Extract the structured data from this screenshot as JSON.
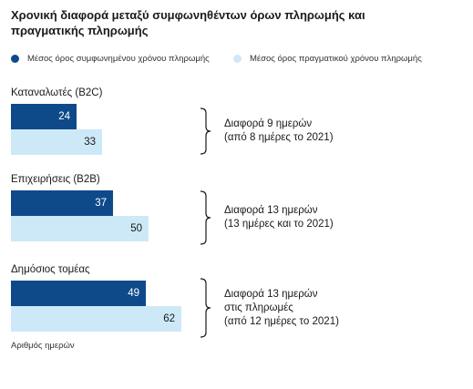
{
  "colors": {
    "dark": "#0e4a8a",
    "light": "#cde9f7",
    "text": "#1a1a1a"
  },
  "chart_data": {
    "type": "bar",
    "orientation": "horizontal",
    "title": "Χρονική διαφορά μεταξύ συμφωνηθέντων όρων πληρωμής και πραγματικής πληρωμής",
    "categories": [
      "Καταναλωτές (B2C)",
      "Επιχειρήσεις (B2B)",
      "Δημόσιος τομέας"
    ],
    "series": [
      {
        "name": "Μέσος όρος συμφωνημένου χρόνου πληρωμής",
        "values": [
          24,
          37,
          49
        ],
        "color": "#0e4a8a"
      },
      {
        "name": "Μέσος όρος πραγματικού χρόνου πληρωμής",
        "values": [
          33,
          50,
          62
        ],
        "color": "#cde9f7"
      }
    ],
    "annotations": [
      [
        "Διαφορά 9 ημερών",
        "(από 8 ημέρες το 2021)"
      ],
      [
        "Διαφορά 13 ημερών",
        "(13 ημέρες και το 2021)"
      ],
      [
        "Διαφορά 13 ημερών",
        "στις πληρωμές",
        "(από 12 ημέρες το 2021)"
      ]
    ],
    "xlabel": "Αριθμός ημερών",
    "ylabel": "",
    "xlim": [
      0,
      62
    ],
    "legend_position": "top",
    "grid": false
  }
}
